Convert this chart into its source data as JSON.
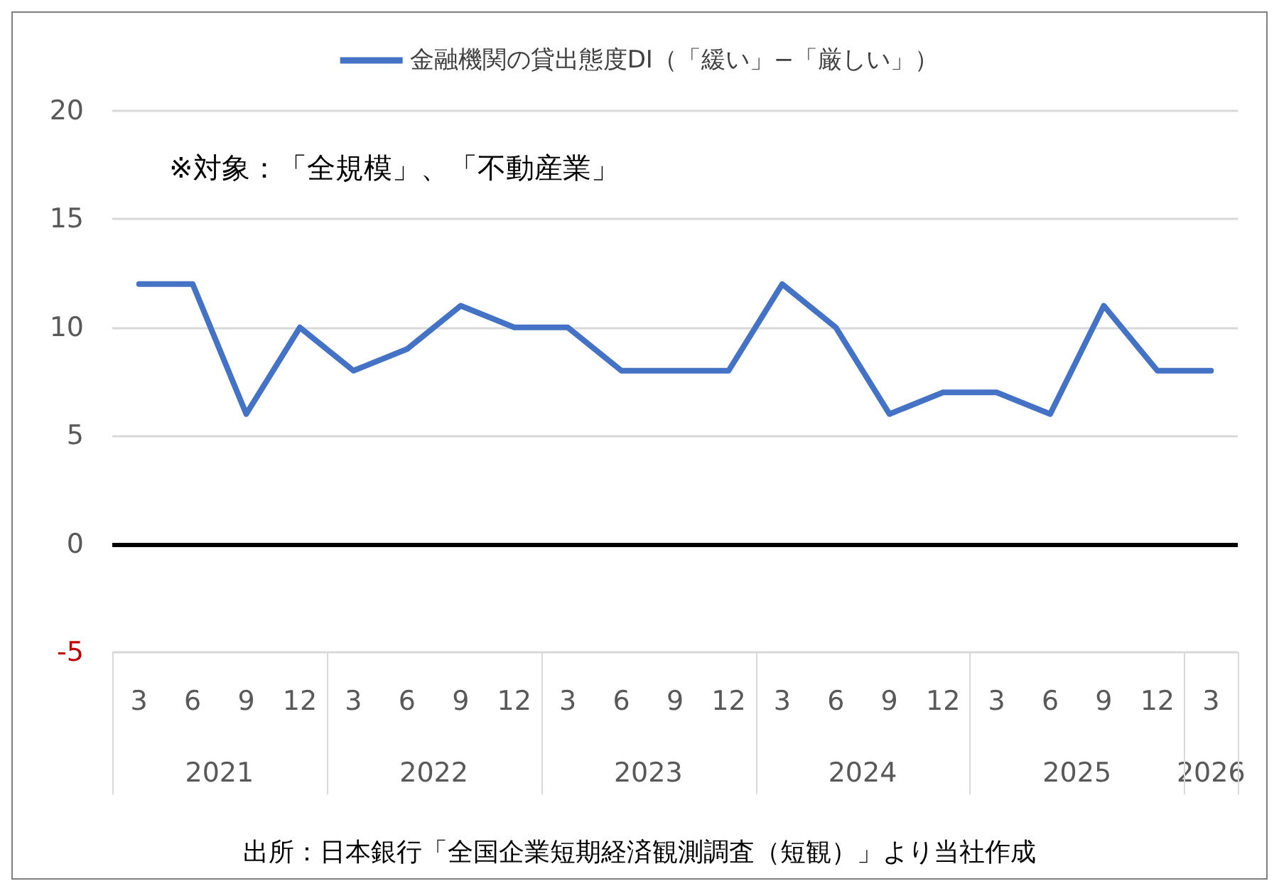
{
  "chart_data": {
    "type": "line",
    "categories": [
      "3",
      "6",
      "9",
      "12",
      "3",
      "6",
      "9",
      "12",
      "3",
      "6",
      "9",
      "12",
      "3",
      "6",
      "9",
      "12",
      "3",
      "6",
      "9",
      "12",
      "3"
    ],
    "series": [
      {
        "name": "金融機関の貸出態度DI（「緩い」−「厳しい」）",
        "color": "#4472c4",
        "values": [
          12,
          12,
          6,
          10,
          8,
          9,
          11,
          10,
          10,
          8,
          8,
          8,
          12,
          10,
          6,
          7,
          7,
          6,
          11,
          8,
          8
        ]
      }
    ],
    "ylim": [
      -5,
      20
    ],
    "yticks": [
      -5,
      0,
      5,
      10,
      15,
      20
    ],
    "grid": "y",
    "legend": "top",
    "marker": "none",
    "line_style": "solid",
    "ref_lines": [
      {
        "axis": "y",
        "value": 0,
        "color": "#000000"
      }
    ],
    "annotations": [
      "※対象：「全規模」、「不動産業」",
      "出所：日本銀行「全国企業短期経済観測調査（短観）」より当社作成",
      "2021",
      "2022",
      "2023",
      "2024",
      "2025",
      "2026"
    ]
  }
}
